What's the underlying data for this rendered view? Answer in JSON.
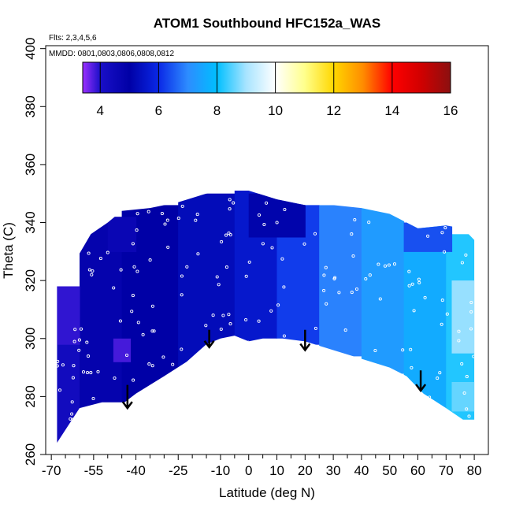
{
  "chart_data": {
    "type": "heatmap",
    "title": "ATOM1 Southbound HFC152a_WAS",
    "annotations": {
      "flights": "Flts: 2,3,4,5,6",
      "dates": "MMDD: 0801,0803,0806,0808,0812"
    },
    "xlabel": "Latitude (deg N)",
    "ylabel": "Theta (C)",
    "xlim": [
      -72,
      85
    ],
    "ylim": [
      260,
      401
    ],
    "x_ticks": [
      -70,
      -55,
      -40,
      -25,
      -10,
      0,
      10,
      20,
      30,
      40,
      50,
      60,
      70,
      80
    ],
    "x_tick_labels": [
      "-70",
      "-55",
      "-40",
      "-25",
      "-10",
      "0",
      "10",
      "20",
      "30",
      "40",
      "50",
      "60",
      "70",
      "80"
    ],
    "x_minor_ticks": [
      -65,
      -60,
      -50,
      -45,
      -35,
      -30,
      -20,
      -15,
      -5,
      5,
      15,
      25,
      35,
      45,
      55,
      65,
      75
    ],
    "y_ticks": [
      260,
      280,
      300,
      320,
      340,
      360,
      380,
      400
    ],
    "y_tick_labels": [
      "260",
      "280",
      "300",
      "320",
      "340",
      "360",
      "380",
      "400"
    ],
    "colorbar": {
      "min": 3.4,
      "max": 16,
      "ticks": [
        4,
        6,
        8,
        10,
        12,
        14,
        16
      ],
      "tick_labels": [
        "4",
        "6",
        "8",
        "10",
        "12",
        "14",
        "16"
      ],
      "stops": [
        {
          "v": 3.4,
          "c": "#9b30ff"
        },
        {
          "v": 4.0,
          "c": "#1a0fc8"
        },
        {
          "v": 5.0,
          "c": "#0000a6"
        },
        {
          "v": 6.0,
          "c": "#0a28e6"
        },
        {
          "v": 7.0,
          "c": "#2d8cff"
        },
        {
          "v": 8.0,
          "c": "#00bfff"
        },
        {
          "v": 9.0,
          "c": "#a8e4ff"
        },
        {
          "v": 10.0,
          "c": "#ffffff"
        },
        {
          "v": 11.0,
          "c": "#ffff8c"
        },
        {
          "v": 12.0,
          "c": "#ffd700"
        },
        {
          "v": 13.0,
          "c": "#ff8c00"
        },
        {
          "v": 14.0,
          "c": "#ff0000"
        },
        {
          "v": 15.0,
          "c": "#d00000"
        },
        {
          "v": 16.0,
          "c": "#8b1010"
        }
      ]
    },
    "domain_top": [
      [
        -68,
        318
      ],
      [
        -62,
        326
      ],
      [
        -56,
        336
      ],
      [
        -50,
        340
      ],
      [
        -45,
        344
      ],
      [
        -35,
        345
      ],
      [
        -25,
        347
      ],
      [
        -15,
        350
      ],
      [
        -8,
        351
      ],
      [
        0,
        351
      ],
      [
        10,
        348
      ],
      [
        20,
        346
      ],
      [
        30,
        346
      ],
      [
        40,
        345
      ],
      [
        50,
        343
      ],
      [
        60,
        338
      ],
      [
        70,
        339
      ],
      [
        76,
        338
      ],
      [
        80,
        334
      ]
    ],
    "domain_bottom": [
      [
        -68,
        264
      ],
      [
        -60,
        276
      ],
      [
        -52,
        278
      ],
      [
        -44,
        278
      ],
      [
        -40,
        281
      ],
      [
        -30,
        287
      ],
      [
        -22,
        292
      ],
      [
        -15,
        298
      ],
      [
        -10,
        300
      ],
      [
        -5,
        301
      ],
      [
        0,
        299
      ],
      [
        5,
        300
      ],
      [
        12,
        300
      ],
      [
        20,
        299
      ],
      [
        30,
        296
      ],
      [
        40,
        293
      ],
      [
        50,
        290
      ],
      [
        56,
        287
      ],
      [
        62,
        281
      ],
      [
        70,
        276
      ],
      [
        76,
        272
      ],
      [
        80,
        272
      ],
      [
        80,
        300
      ]
    ],
    "regions": [
      {
        "x": [
          -68,
          -60
        ],
        "y": [
          264,
          318
        ],
        "value": 4.3
      },
      {
        "x": [
          -60,
          -45
        ],
        "y": [
          276,
          340
        ],
        "value": 4.8
      },
      {
        "x": [
          -45,
          -25
        ],
        "y": [
          278,
          346
        ],
        "value": 5.0
      },
      {
        "x": [
          -25,
          -5
        ],
        "y": [
          290,
          350
        ],
        "value": 5.3
      },
      {
        "x": [
          -5,
          10
        ],
        "y": [
          298,
          351
        ],
        "value": 5.6
      },
      {
        "x": [
          10,
          25
        ],
        "y": [
          298,
          348
        ],
        "value": 6.2
      },
      {
        "x": [
          25,
          40
        ],
        "y": [
          294,
          346
        ],
        "value": 6.9
      },
      {
        "x": [
          40,
          55
        ],
        "y": [
          288,
          345
        ],
        "value": 7.3
      },
      {
        "x": [
          55,
          70
        ],
        "y": [
          276,
          340
        ],
        "value": 7.6
      },
      {
        "x": [
          70,
          80
        ],
        "y": [
          272,
          336
        ],
        "value": 8.2
      },
      {
        "x": [
          -68,
          -60
        ],
        "y": [
          298,
          318
        ],
        "value": 3.9
      },
      {
        "x": [
          -48,
          -42
        ],
        "y": [
          292,
          300
        ],
        "value": 3.8
      },
      {
        "x": [
          -50,
          -40
        ],
        "y": [
          330,
          342
        ],
        "value": 4.6
      },
      {
        "x": [
          0,
          20
        ],
        "y": [
          335,
          350
        ],
        "value": 5.1
      },
      {
        "x": [
          55,
          72
        ],
        "y": [
          330,
          340
        ],
        "value": 6.4
      },
      {
        "x": [
          72,
          80
        ],
        "y": [
          295,
          320
        ],
        "value": 8.9
      },
      {
        "x": [
          72,
          80
        ],
        "y": [
          275,
          285
        ],
        "value": 8.6
      }
    ],
    "arrows": [
      {
        "x": -43,
        "y_top": 284,
        "y_bottom": 276
      },
      {
        "x": -14,
        "y_top": 303,
        "y_bottom": 297
      },
      {
        "x": 20,
        "y_top": 303,
        "y_bottom": 296
      },
      {
        "x": 61,
        "y_top": 289,
        "y_bottom": 282
      }
    ]
  }
}
